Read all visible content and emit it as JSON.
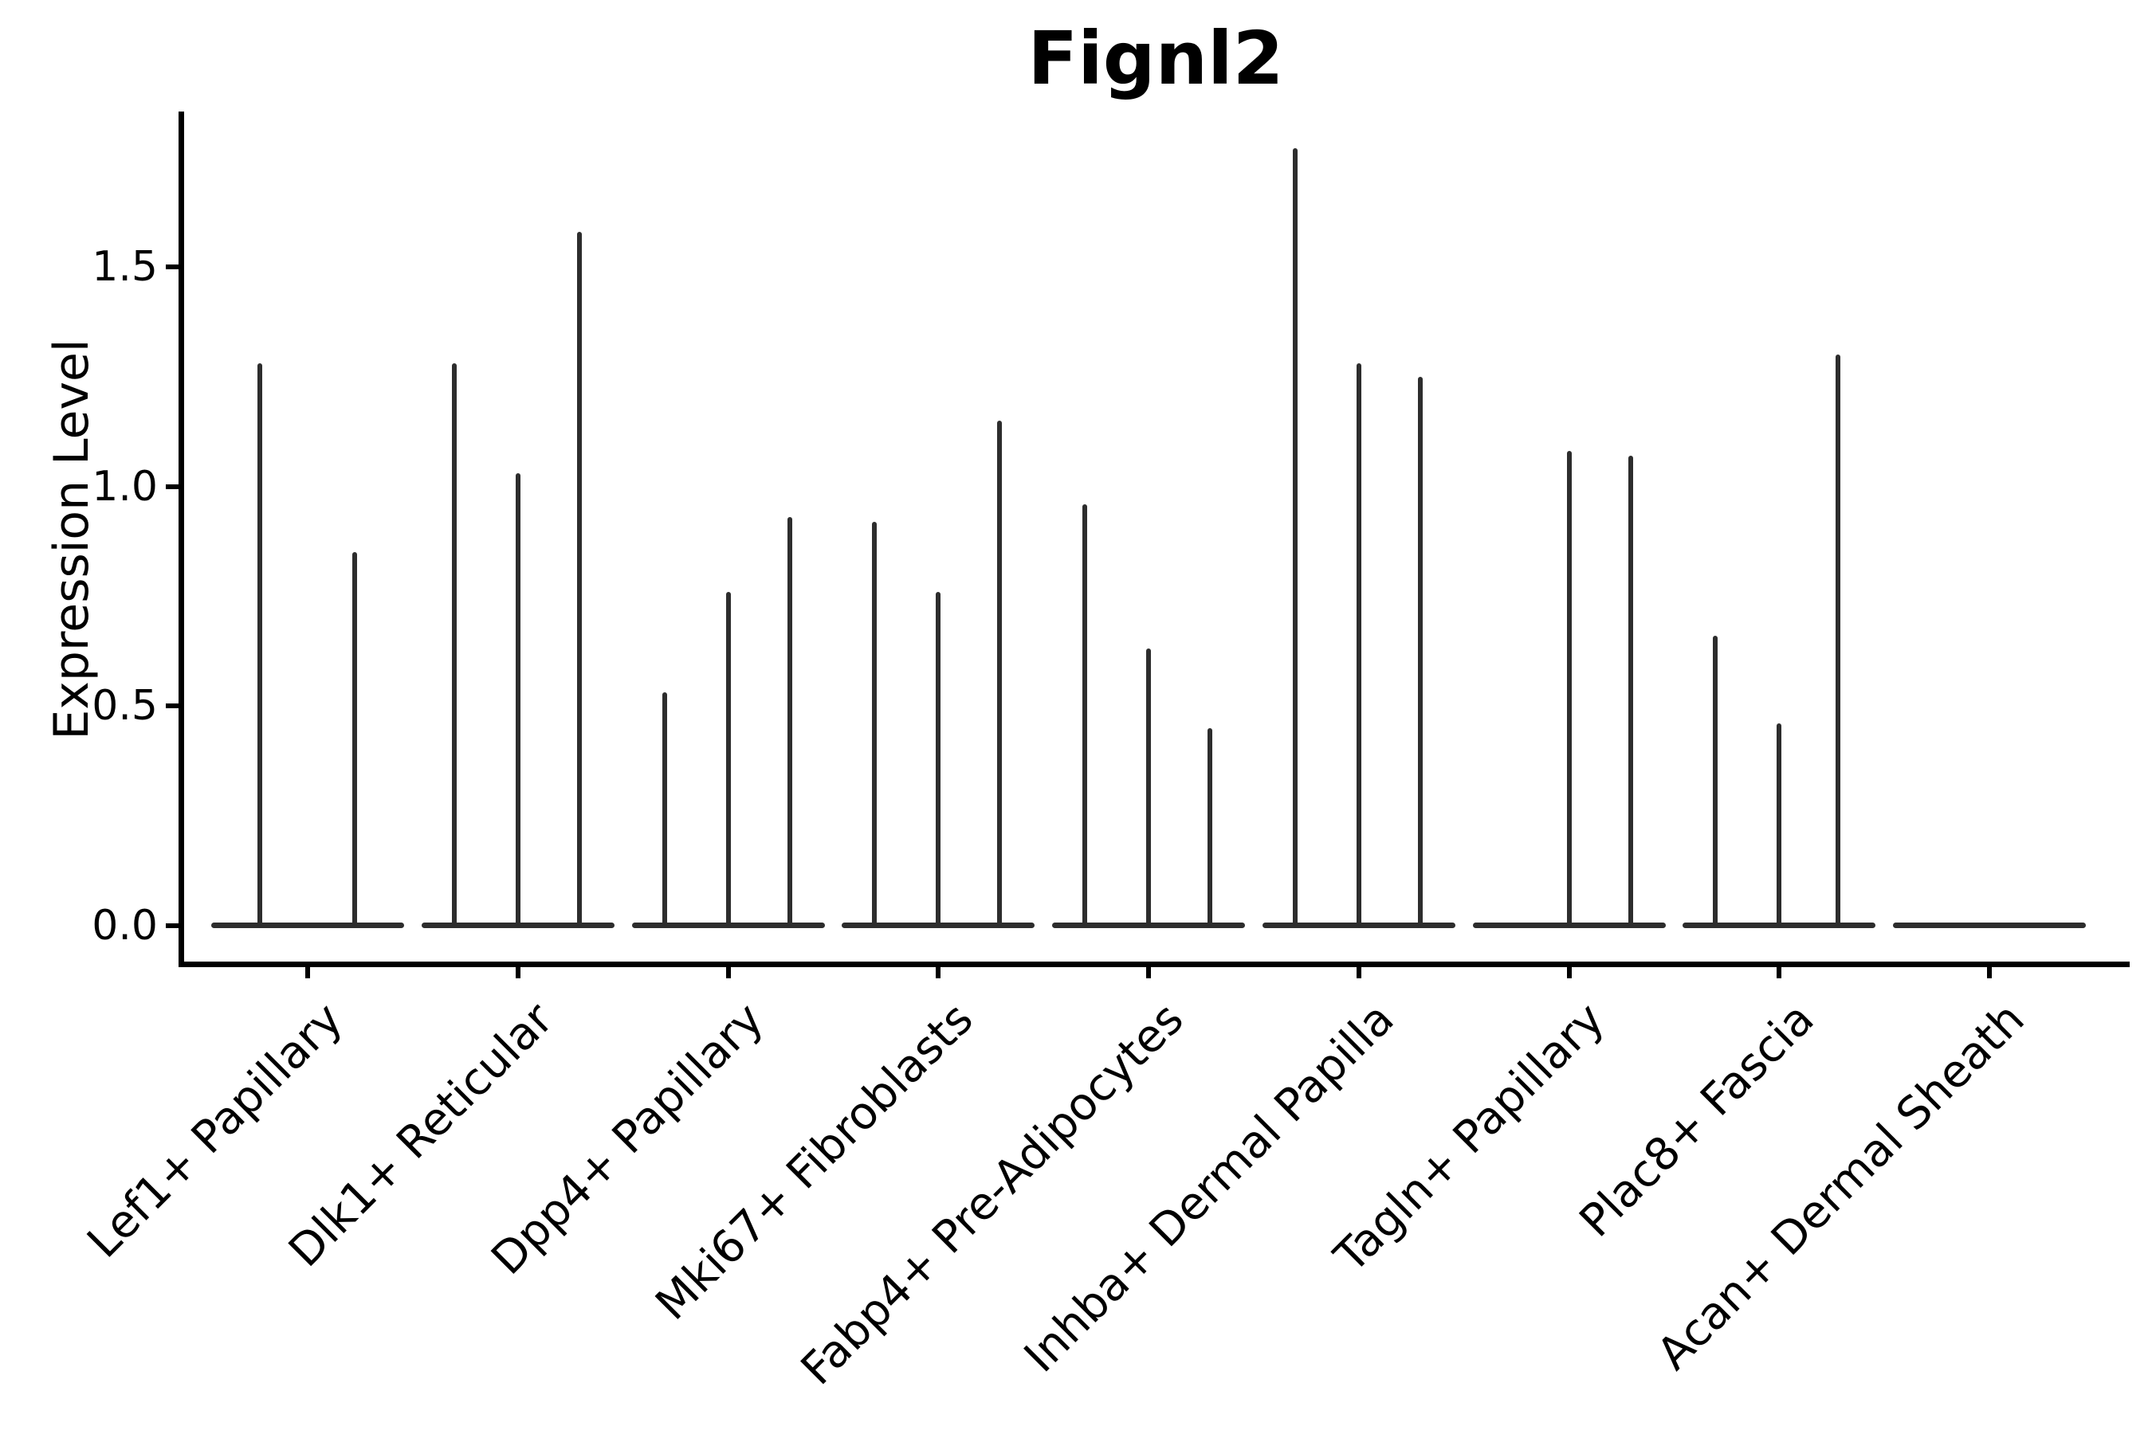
{
  "chart": {
    "title": "Fignl2",
    "ylabel": "Expression Level"
  },
  "chart_data": {
    "type": "violin",
    "title": "Fignl2",
    "xlabel": "",
    "ylabel": "Expression Level",
    "ylim": [
      -0.09,
      1.85
    ],
    "yticks": [
      0.0,
      0.5,
      1.0,
      1.5
    ],
    "ytick_labels": [
      "0.0",
      "0.5",
      "1.0",
      "1.5"
    ],
    "grid": false,
    "legend_position": "none",
    "categories": [
      "Lef1+ Papillary",
      "Dlk1+ Reticular",
      "Dpp4+ Papillary",
      "Mki67+ Fibroblasts",
      "Fabp4+ Pre-Adipocytes",
      "Inhba+ Dermal Papilla",
      "Tagln+ Papillary",
      "Plac8+ Fascia",
      "Acan+ Dermal Sheath"
    ],
    "groups": [
      {
        "category": "Lef1+ Papillary",
        "base_value": 0.0,
        "sticks": [
          {
            "offset": -60,
            "value": 1.28
          },
          {
            "offset": 59,
            "value": 0.85
          }
        ]
      },
      {
        "category": "Dlk1+ Reticular",
        "base_value": 0.0,
        "sticks": [
          {
            "offset": -80,
            "value": 1.28
          },
          {
            "offset": 0,
            "value": 1.03
          },
          {
            "offset": 77,
            "value": 1.58
          }
        ]
      },
      {
        "category": "Dpp4+ Papillary",
        "base_value": 0.0,
        "sticks": [
          {
            "offset": -80,
            "value": 0.53
          },
          {
            "offset": 0,
            "value": 0.76
          },
          {
            "offset": 77,
            "value": 0.93
          }
        ]
      },
      {
        "category": "Mki67+ Fibroblasts",
        "base_value": 0.0,
        "sticks": [
          {
            "offset": -80,
            "value": 0.92
          },
          {
            "offset": 0,
            "value": 0.76
          },
          {
            "offset": 77,
            "value": 1.15
          }
        ]
      },
      {
        "category": "Fabp4+ Pre-Adipocytes",
        "base_value": 0.0,
        "sticks": [
          {
            "offset": -80,
            "value": 0.96
          },
          {
            "offset": 0,
            "value": 0.63
          },
          {
            "offset": 77,
            "value": 0.45
          }
        ]
      },
      {
        "category": "Inhba+ Dermal Papilla",
        "base_value": 0.0,
        "sticks": [
          {
            "offset": -80,
            "value": 1.77
          },
          {
            "offset": 0,
            "value": 1.28
          },
          {
            "offset": 77,
            "value": 1.25
          }
        ]
      },
      {
        "category": "Tagln+ Papillary",
        "base_value": 0.0,
        "sticks": [
          {
            "offset": 0,
            "value": 1.08
          },
          {
            "offset": 77,
            "value": 1.07
          }
        ]
      },
      {
        "category": "Plac8+ Fascia",
        "base_value": 0.0,
        "sticks": [
          {
            "offset": -80,
            "value": 0.66
          },
          {
            "offset": 0,
            "value": 0.46
          },
          {
            "offset": 74,
            "value": 1.3
          }
        ]
      },
      {
        "category": "Acan+ Dermal Sheath",
        "base_value": 0.0,
        "sticks": []
      }
    ],
    "colors": {
      "violin": "#2d2d2d",
      "axis": "#000000",
      "background": "#ffffff"
    }
  }
}
